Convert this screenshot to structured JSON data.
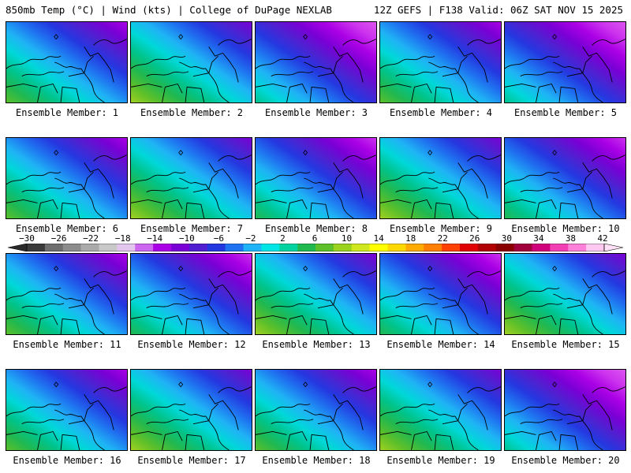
{
  "header": {
    "left": "850mb Temp (°C) | Wind (kts) | College of DuPage NEXLAB",
    "right": "12Z GEFS | F138 Valid: 06Z SAT NOV 15 2025"
  },
  "members": [
    {
      "label": "Ensemble Member: 1",
      "level": 0.45
    },
    {
      "label": "Ensemble Member: 2",
      "level": 0.62
    },
    {
      "label": "Ensemble Member: 3",
      "level": 0.25
    },
    {
      "label": "Ensemble Member: 4",
      "level": 0.42
    },
    {
      "label": "Ensemble Member: 5",
      "level": 0.22
    },
    {
      "label": "Ensemble Member: 6",
      "level": 0.58
    },
    {
      "label": "Ensemble Member: 7",
      "level": 0.62
    },
    {
      "label": "Ensemble Member: 8",
      "level": 0.38
    },
    {
      "label": "Ensemble Member: 9",
      "level": 0.66
    },
    {
      "label": "Ensemble Member: 10",
      "level": 0.4
    },
    {
      "label": "Ensemble Member: 11",
      "level": 0.48
    },
    {
      "label": "Ensemble Member: 12",
      "level": 0.38
    },
    {
      "label": "Ensemble Member: 13",
      "level": 0.62
    },
    {
      "label": "Ensemble Member: 14",
      "level": 0.4
    },
    {
      "label": "Ensemble Member: 15",
      "level": 0.72
    },
    {
      "label": "Ensemble Member: 16",
      "level": 0.45
    },
    {
      "label": "Ensemble Member: 17",
      "level": 0.65
    },
    {
      "label": "Ensemble Member: 18",
      "level": 0.45
    },
    {
      "label": "Ensemble Member: 19",
      "level": 0.6
    },
    {
      "label": "Ensemble Member: 20",
      "level": 0.22
    }
  ],
  "colorbar": {
    "ticks": [
      "−30",
      "−26",
      "−22",
      "−18",
      "−14",
      "−10",
      "−6",
      "−2",
      "2",
      "6",
      "10",
      "14",
      "18",
      "22",
      "26",
      "30",
      "34",
      "38",
      "42"
    ],
    "colors": [
      "#3a3a3a",
      "#6e6e6e",
      "#8c8c8c",
      "#aaaaaa",
      "#c8c8c8",
      "#e3c6ee",
      "#cc66ee",
      "#aa00e6",
      "#7a00d6",
      "#5020d0",
      "#2438e0",
      "#1f72f0",
      "#1fb4f5",
      "#00e5e5",
      "#00d2a0",
      "#21b850",
      "#5cc02a",
      "#9ad21e",
      "#cfe81e",
      "#ffff00",
      "#ffd800",
      "#ffaa00",
      "#ff7f00",
      "#ff4000",
      "#e00000",
      "#b00000",
      "#8a0000",
      "#a0003c",
      "#d0007a",
      "#f040b4",
      "#ff80d8",
      "#ffc8f0"
    ]
  }
}
